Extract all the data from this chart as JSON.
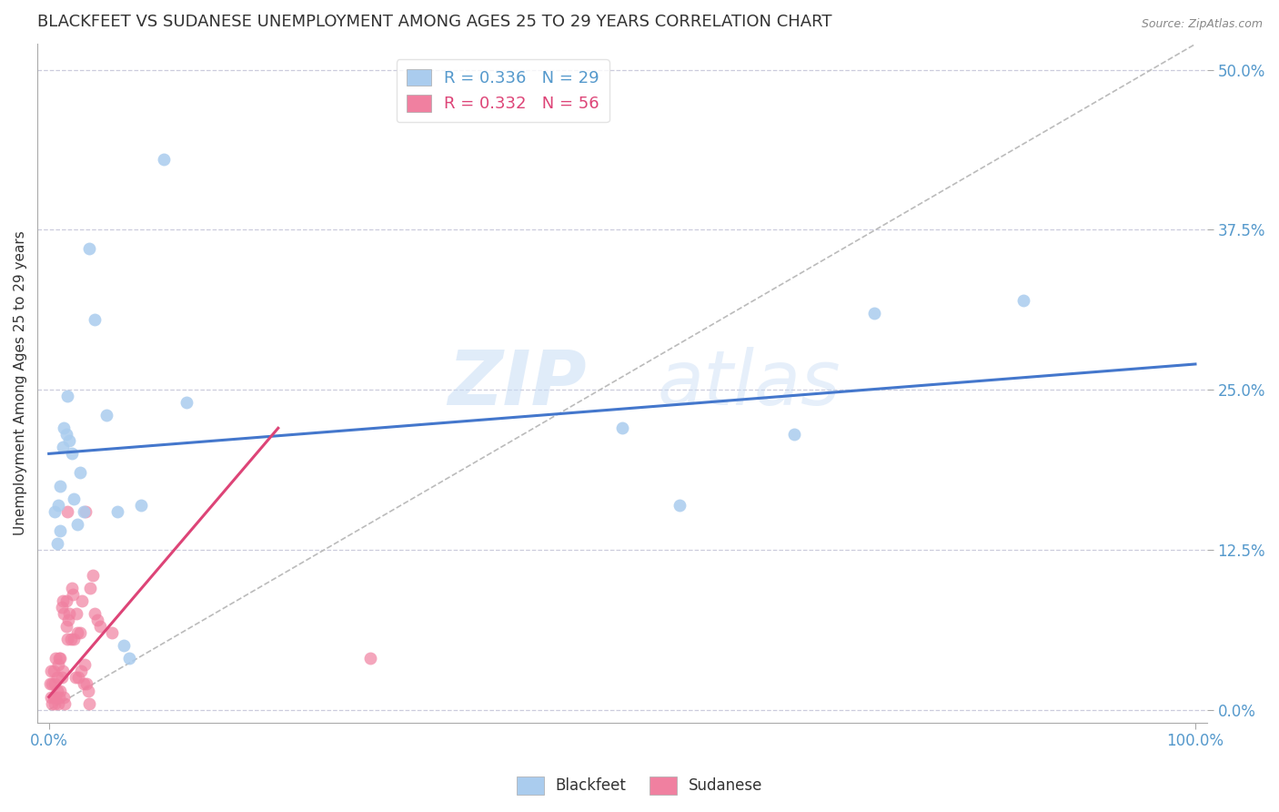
{
  "title": "BLACKFEET VS SUDANESE UNEMPLOYMENT AMONG AGES 25 TO 29 YEARS CORRELATION CHART",
  "source": "Source: ZipAtlas.com",
  "ylabel": "Unemployment Among Ages 25 to 29 years",
  "blackfeet_R": 0.336,
  "blackfeet_N": 29,
  "sudanese_R": 0.332,
  "sudanese_N": 56,
  "blackfeet_color": "#aaccee",
  "sudanese_color": "#f080a0",
  "blackfeet_line_color": "#4477cc",
  "sudanese_line_color": "#dd4477",
  "diagonal_color": "#bbbbbb",
  "background_color": "#ffffff",
  "grid_color": "#ccccdd",
  "blackfeet_x": [
    0.005,
    0.007,
    0.008,
    0.01,
    0.01,
    0.012,
    0.013,
    0.015,
    0.016,
    0.018,
    0.02,
    0.022,
    0.025,
    0.027,
    0.03,
    0.035,
    0.04,
    0.05,
    0.06,
    0.065,
    0.07,
    0.08,
    0.1,
    0.12,
    0.5,
    0.55,
    0.65,
    0.72,
    0.85
  ],
  "blackfeet_y": [
    0.155,
    0.13,
    0.16,
    0.175,
    0.14,
    0.205,
    0.22,
    0.215,
    0.245,
    0.21,
    0.2,
    0.165,
    0.145,
    0.185,
    0.155,
    0.36,
    0.305,
    0.23,
    0.155,
    0.05,
    0.04,
    0.16,
    0.43,
    0.24,
    0.22,
    0.16,
    0.215,
    0.31,
    0.32
  ],
  "sudanese_x": [
    0.001,
    0.002,
    0.002,
    0.003,
    0.003,
    0.004,
    0.004,
    0.005,
    0.005,
    0.006,
    0.006,
    0.007,
    0.007,
    0.008,
    0.008,
    0.009,
    0.009,
    0.01,
    0.01,
    0.011,
    0.011,
    0.012,
    0.012,
    0.013,
    0.013,
    0.014,
    0.015,
    0.015,
    0.016,
    0.016,
    0.017,
    0.018,
    0.019,
    0.02,
    0.021,
    0.022,
    0.023,
    0.024,
    0.025,
    0.026,
    0.027,
    0.028,
    0.029,
    0.03,
    0.031,
    0.032,
    0.033,
    0.034,
    0.035,
    0.036,
    0.038,
    0.04,
    0.042,
    0.045,
    0.055,
    0.28
  ],
  "sudanese_y": [
    0.02,
    0.01,
    0.03,
    0.005,
    0.02,
    0.01,
    0.03,
    0.005,
    0.02,
    0.01,
    0.04,
    0.015,
    0.025,
    0.005,
    0.035,
    0.01,
    0.04,
    0.015,
    0.04,
    0.025,
    0.08,
    0.03,
    0.085,
    0.01,
    0.075,
    0.005,
    0.085,
    0.065,
    0.055,
    0.155,
    0.07,
    0.075,
    0.055,
    0.095,
    0.09,
    0.055,
    0.025,
    0.075,
    0.06,
    0.025,
    0.06,
    0.03,
    0.085,
    0.02,
    0.035,
    0.155,
    0.02,
    0.015,
    0.005,
    0.095,
    0.105,
    0.075,
    0.07,
    0.065,
    0.06,
    0.04
  ],
  "xlim": [
    -0.01,
    1.01
  ],
  "ylim": [
    -0.01,
    0.52
  ],
  "xtick_positions": [
    0.0,
    1.0
  ],
  "xticklabels": [
    "0.0%",
    "100.0%"
  ],
  "yticks_left": [],
  "yticks_right": [
    0.0,
    0.125,
    0.25,
    0.375,
    0.5
  ],
  "yticklabels_right": [
    "0.0%",
    "12.5%",
    "25.0%",
    "37.5%",
    "50.0%"
  ],
  "grid_yticks": [
    0.0,
    0.125,
    0.25,
    0.375,
    0.5
  ],
  "marker_size": 100,
  "watermark_zip": "ZIP",
  "watermark_atlas": "atlas",
  "title_fontsize": 13,
  "axis_label_fontsize": 11,
  "tick_fontsize": 12,
  "legend_fontsize": 13
}
